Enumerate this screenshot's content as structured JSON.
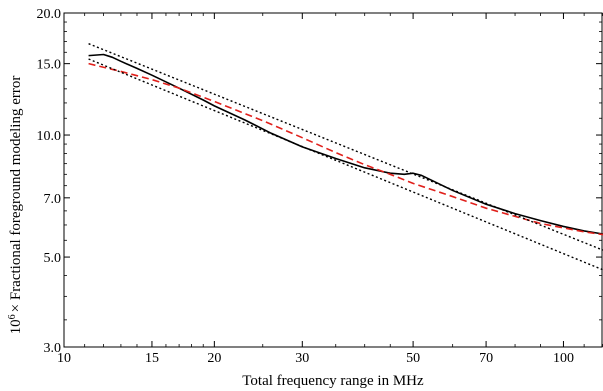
{
  "chart_data": {
    "type": "line",
    "xlabel": "Total frequency range in MHz",
    "ylabel_prefix": "10",
    "ylabel_exponent": "6",
    "ylabel_suffix": "× Fractional foreground modeling error",
    "x_scale": "log",
    "y_scale": "log",
    "xlim": [
      10,
      120
    ],
    "ylim": [
      3.0,
      20.0
    ],
    "grid": false,
    "x_ticks": [
      {
        "value": 10,
        "label": "10"
      },
      {
        "value": 15,
        "label": "15"
      },
      {
        "value": 20,
        "label": "20"
      },
      {
        "value": 30,
        "label": "30"
      },
      {
        "value": 50,
        "label": "50"
      },
      {
        "value": 70,
        "label": "70"
      },
      {
        "value": 100,
        "label": "100"
      }
    ],
    "y_ticks": [
      {
        "value": 3.0,
        "label": "3.0"
      },
      {
        "value": 5.0,
        "label": "5.0"
      },
      {
        "value": 7.0,
        "label": "7.0"
      },
      {
        "value": 10.0,
        "label": "10.0"
      },
      {
        "value": 15.0,
        "label": "15.0"
      },
      {
        "value": 20.0,
        "label": "20.0"
      }
    ],
    "series": [
      {
        "style": "solid",
        "color": "#000000",
        "points": [
          [
            11.2,
            15.7
          ],
          [
            12.0,
            15.8
          ],
          [
            12.5,
            15.55
          ],
          [
            13,
            15.2
          ],
          [
            14,
            14.6
          ],
          [
            15,
            14.05
          ],
          [
            17,
            13.05
          ],
          [
            19,
            12.2
          ],
          [
            20,
            11.8
          ],
          [
            23,
            10.9
          ],
          [
            26,
            10.1
          ],
          [
            30,
            9.35
          ],
          [
            35,
            8.75
          ],
          [
            40,
            8.3
          ],
          [
            45,
            8.05
          ],
          [
            48,
            8.0
          ],
          [
            50,
            8.05
          ],
          [
            52,
            7.95
          ],
          [
            60,
            7.3
          ],
          [
            70,
            6.75
          ],
          [
            80,
            6.4
          ],
          [
            90,
            6.15
          ],
          [
            100,
            5.95
          ],
          [
            110,
            5.8
          ],
          [
            120,
            5.7
          ]
        ]
      },
      {
        "style": "dashed",
        "color": "#e0201b",
        "points": [
          [
            11.2,
            15.0
          ],
          [
            13,
            14.35
          ],
          [
            15,
            13.7
          ],
          [
            17,
            13.05
          ],
          [
            20,
            12.1
          ],
          [
            25,
            10.85
          ],
          [
            30,
            9.85
          ],
          [
            35,
            9.05
          ],
          [
            40,
            8.45
          ],
          [
            45,
            8.0
          ],
          [
            50,
            7.6
          ],
          [
            60,
            7.05
          ],
          [
            70,
            6.6
          ],
          [
            80,
            6.3
          ],
          [
            90,
            6.05
          ],
          [
            100,
            5.9
          ],
          [
            110,
            5.77
          ],
          [
            120,
            5.68
          ]
        ]
      },
      {
        "style": "dotted",
        "color": "#000000",
        "points": [
          [
            11.2,
            16.8
          ],
          [
            120,
            5.2
          ]
        ]
      },
      {
        "style": "dotted",
        "color": "#000000",
        "points": [
          [
            11.2,
            15.4
          ],
          [
            120,
            4.65
          ]
        ]
      }
    ]
  }
}
